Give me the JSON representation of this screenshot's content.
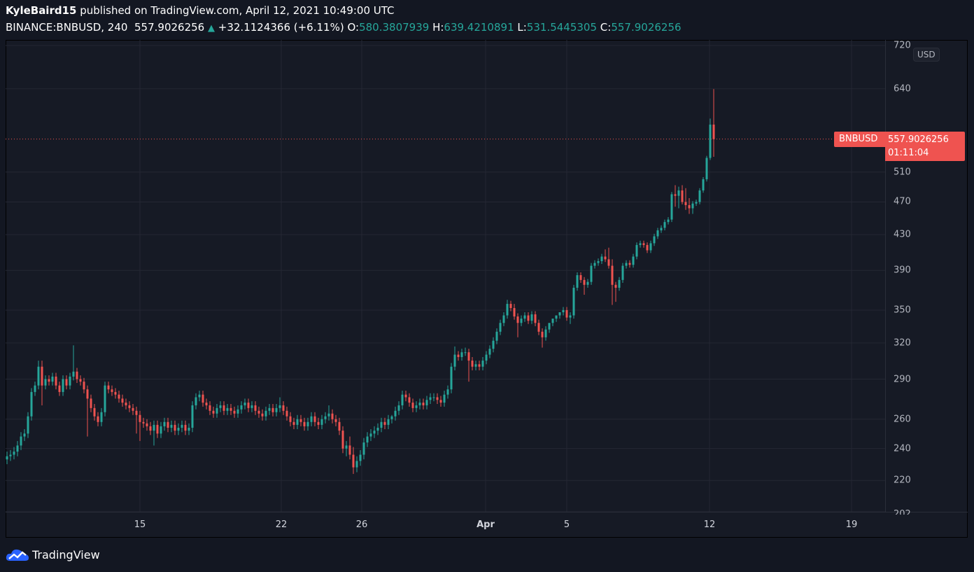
{
  "header": {
    "author": "KyleBaird15",
    "published_text": "published on TradingView.com, April 12, 2021 10:49:00 UTC",
    "symbol": "BINANCE:BNBUSD, 240",
    "last": "557.9026256",
    "change": "+32.1124366 (+6.11%)",
    "o_label": "O:",
    "o_value": "580.3807939",
    "h_label": "H:",
    "h_value": "639.4210891",
    "l_label": "L:",
    "l_value": "531.5445305",
    "c_label": "C:",
    "c_value": "557.9026256"
  },
  "price_label": {
    "symbol": "BNBUSD",
    "price": "557.9026256",
    "countdown": "01:11:04"
  },
  "currency": "USD",
  "brand": "TradingView",
  "colors": {
    "up": "#26a69a",
    "down": "#ef5350",
    "background": "#161a25",
    "grid": "#242733"
  },
  "chart_data": {
    "type": "candlestick",
    "interval": "240",
    "price_scale": "log",
    "ylim": [
      202,
      720
    ],
    "grid": true,
    "y_ticks": [
      "720",
      "640",
      "510",
      "470",
      "430",
      "390",
      "350",
      "320",
      "290",
      "260",
      "240",
      "220",
      "202"
    ],
    "x_ticks": [
      "15",
      "22",
      "26",
      "Apr",
      "5",
      "12",
      "19"
    ],
    "last_price": 557.9026256,
    "open": [
      233,
      235,
      236,
      238,
      242,
      248,
      250,
      262,
      280,
      285,
      300,
      285,
      290,
      288,
      292,
      285,
      280,
      290,
      285,
      292,
      296,
      290,
      288,
      282,
      275,
      268,
      262,
      258,
      265,
      285,
      282,
      280,
      278,
      275,
      272,
      270,
      268,
      266,
      263,
      258,
      257,
      255,
      252,
      256,
      250,
      255,
      258,
      254,
      256,
      252,
      254,
      256,
      252,
      254,
      270,
      276,
      278,
      272,
      270,
      266,
      264,
      268,
      270,
      266,
      268,
      266,
      264,
      267,
      270,
      272,
      268,
      270,
      266,
      264,
      262,
      266,
      268,
      265,
      268,
      270,
      266,
      262,
      258,
      256,
      260,
      258,
      255,
      258,
      262,
      258,
      256,
      260,
      262,
      264,
      260,
      258,
      252,
      240,
      242,
      236,
      228,
      232,
      236,
      244,
      248,
      250,
      252,
      254,
      258,
      256,
      260,
      262,
      266,
      270,
      278,
      276,
      272,
      268,
      270,
      272,
      270,
      274,
      276,
      276,
      274,
      272,
      278,
      282,
      300,
      310,
      308,
      312,
      312,
      305,
      300,
      302,
      300,
      305,
      310,
      315,
      322,
      330,
      338,
      345,
      356,
      352,
      344,
      338,
      342,
      345,
      340,
      346,
      338,
      330,
      325,
      332,
      338,
      342,
      345,
      348,
      350,
      343,
      345,
      372,
      385,
      380,
      375,
      378,
      395,
      398,
      400,
      405,
      402,
      395,
      375,
      372,
      380,
      395,
      398,
      396,
      405,
      418,
      420,
      418,
      412,
      420,
      428,
      435,
      438,
      445,
      448,
      480,
      478,
      485,
      470,
      466,
      462,
      468,
      470,
      485,
      500,
      530,
      580.3807939
    ],
    "high": [
      238,
      239,
      241,
      245,
      251,
      253,
      265,
      283,
      288,
      305,
      305,
      293,
      293,
      295,
      295,
      288,
      293,
      293,
      295,
      318,
      299,
      293,
      291,
      285,
      278,
      271,
      265,
      268,
      288,
      288,
      285,
      283,
      281,
      278,
      275,
      273,
      271,
      269,
      266,
      261,
      260,
      258,
      259,
      259,
      258,
      261,
      261,
      259,
      259,
      257,
      259,
      259,
      257,
      273,
      279,
      281,
      281,
      275,
      273,
      269,
      271,
      273,
      273,
      271,
      271,
      269,
      270,
      273,
      275,
      275,
      273,
      273,
      269,
      267,
      269,
      271,
      271,
      271,
      276,
      273,
      269,
      265,
      261,
      263,
      263,
      261,
      261,
      265,
      265,
      261,
      263,
      265,
      270,
      267,
      263,
      261,
      255,
      245,
      248,
      241,
      235,
      239,
      247,
      251,
      253,
      255,
      257,
      261,
      261,
      263,
      263,
      269,
      273,
      281,
      281,
      279,
      275,
      273,
      275,
      275,
      277,
      279,
      279,
      279,
      277,
      281,
      285,
      303,
      317,
      313,
      315,
      316,
      315,
      308,
      305,
      305,
      308,
      313,
      318,
      325,
      333,
      341,
      348,
      360,
      359,
      356,
      347,
      345,
      348,
      348,
      349,
      349,
      341,
      333,
      335,
      335,
      341,
      345,
      348,
      353,
      353,
      348,
      375,
      388,
      388,
      383,
      381,
      398,
      401,
      403,
      408,
      413,
      415,
      402,
      378,
      383,
      398,
      401,
      401,
      408,
      421,
      423,
      423,
      421,
      423,
      431,
      438,
      441,
      448,
      451,
      483,
      492,
      490,
      492,
      488,
      475,
      471,
      473,
      488,
      503,
      533,
      590,
      639.4210891
    ],
    "low": [
      230,
      232,
      233,
      235,
      239,
      245,
      247,
      259,
      277,
      282,
      270,
      282,
      285,
      285,
      282,
      277,
      277,
      282,
      282,
      289,
      287,
      285,
      279,
      248,
      265,
      259,
      255,
      255,
      262,
      279,
      277,
      275,
      272,
      269,
      267,
      265,
      263,
      250,
      245,
      254,
      252,
      249,
      242,
      247,
      247,
      252,
      251,
      251,
      249,
      249,
      251,
      249,
      249,
      251,
      267,
      273,
      269,
      267,
      263,
      261,
      261,
      265,
      263,
      263,
      263,
      261,
      261,
      264,
      267,
      265,
      265,
      263,
      261,
      259,
      259,
      263,
      262,
      262,
      265,
      263,
      259,
      255,
      253,
      253,
      255,
      252,
      252,
      255,
      255,
      253,
      253,
      257,
      259,
      257,
      255,
      249,
      237,
      235,
      233,
      224,
      225,
      229,
      233,
      241,
      245,
      247,
      249,
      251,
      253,
      253,
      257,
      259,
      263,
      267,
      273,
      269,
      265,
      265,
      267,
      267,
      267,
      271,
      273,
      271,
      269,
      269,
      275,
      279,
      297,
      305,
      305,
      309,
      288,
      297,
      297,
      297,
      297,
      302,
      307,
      312,
      319,
      327,
      335,
      342,
      349,
      341,
      325,
      335,
      339,
      337,
      337,
      335,
      327,
      316,
      322,
      329,
      335,
      339,
      342,
      345,
      340,
      337,
      342,
      369,
      377,
      365,
      372,
      375,
      392,
      395,
      397,
      399,
      392,
      355,
      358,
      369,
      377,
      392,
      393,
      393,
      402,
      415,
      415,
      409,
      409,
      417,
      425,
      432,
      435,
      442,
      445,
      464,
      462,
      467,
      460,
      455,
      455,
      465,
      467,
      482,
      497,
      527,
      531.5445305
    ],
    "close": [
      235,
      236,
      238,
      242,
      248,
      250,
      262,
      280,
      285,
      300,
      285,
      290,
      288,
      292,
      285,
      280,
      290,
      285,
      292,
      296,
      290,
      288,
      282,
      275,
      268,
      262,
      258,
      265,
      285,
      282,
      280,
      278,
      275,
      272,
      270,
      268,
      266,
      263,
      258,
      257,
      255,
      252,
      256,
      250,
      255,
      258,
      254,
      256,
      252,
      254,
      256,
      252,
      254,
      270,
      276,
      278,
      272,
      270,
      266,
      264,
      268,
      270,
      266,
      268,
      266,
      264,
      267,
      270,
      272,
      268,
      270,
      266,
      264,
      262,
      266,
      268,
      265,
      268,
      270,
      266,
      262,
      258,
      256,
      260,
      258,
      255,
      258,
      262,
      258,
      256,
      260,
      262,
      264,
      260,
      258,
      252,
      240,
      242,
      236,
      228,
      232,
      236,
      244,
      248,
      250,
      252,
      254,
      258,
      256,
      260,
      262,
      266,
      270,
      278,
      276,
      272,
      268,
      270,
      272,
      270,
      274,
      276,
      276,
      274,
      272,
      278,
      282,
      300,
      310,
      308,
      312,
      312,
      305,
      300,
      302,
      300,
      305,
      310,
      315,
      322,
      330,
      338,
      345,
      356,
      352,
      344,
      338,
      342,
      345,
      340,
      346,
      338,
      330,
      325,
      332,
      338,
      342,
      345,
      348,
      350,
      343,
      345,
      372,
      385,
      380,
      375,
      378,
      395,
      398,
      400,
      405,
      402,
      395,
      375,
      372,
      380,
      395,
      398,
      396,
      405,
      418,
      420,
      418,
      412,
      420,
      428,
      435,
      438,
      445,
      448,
      480,
      478,
      485,
      470,
      466,
      462,
      468,
      470,
      485,
      500,
      530,
      580.3807939,
      557.9026256
    ]
  }
}
